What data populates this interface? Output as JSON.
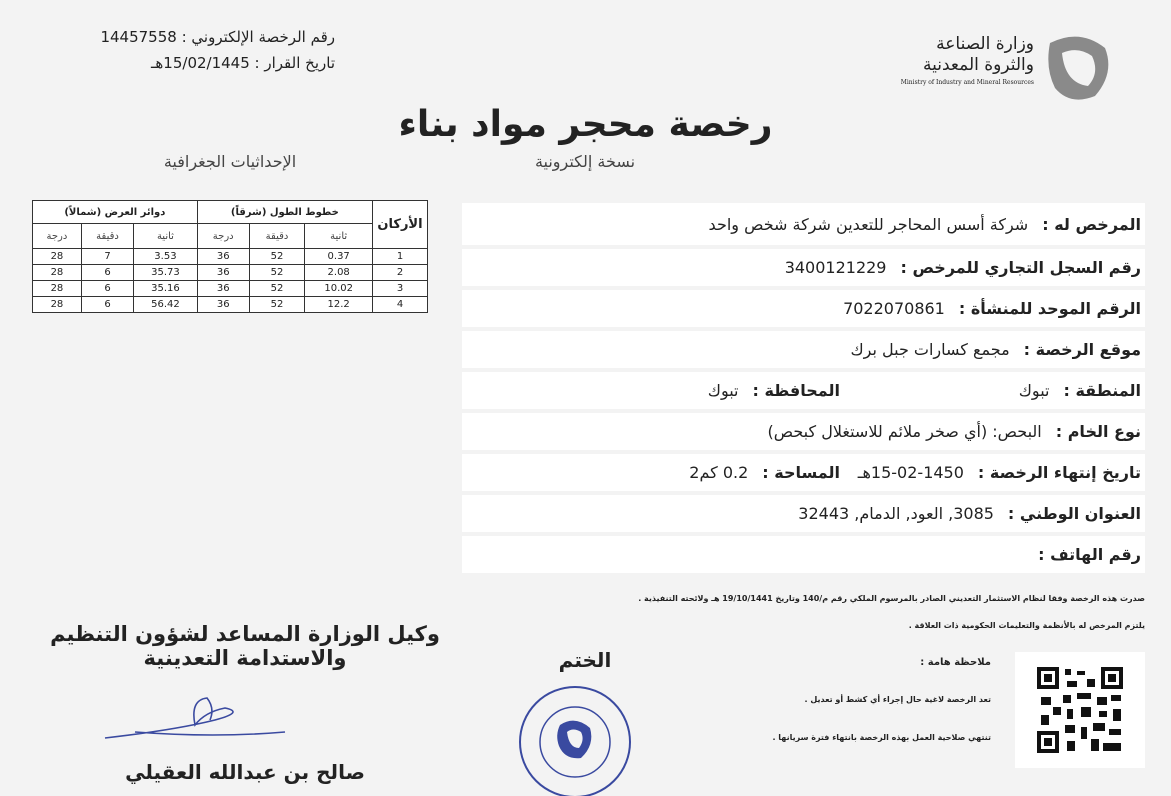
{
  "header": {
    "license_number_label": "رقم الرخصة الإلكتروني :",
    "license_number": "14457558",
    "decision_date_label": "تاريخ القرار :",
    "decision_date": "15/02/1445هـ"
  },
  "ministry": {
    "name_line1": "وزارة الصناعة",
    "name_line2": "والثروة المعدنية",
    "name_en": "Ministry of Industry and Mineral Resources"
  },
  "title": "رخصة محجر مواد بناء",
  "subtitle": "نسخة إلكترونية",
  "coordinates": {
    "title": "الإحداثيات الجغرافية",
    "corner_header": "الأركان",
    "longitude_header": "خطوط الطول (شرقاً)",
    "latitude_header": "دوائر العرض (شمالاً)",
    "sub_headers": [
      "ثانية",
      "دقيقة",
      "درجة"
    ],
    "rows": [
      [
        "1",
        "0.37",
        "52",
        "36",
        "3.53",
        "7",
        "28"
      ],
      [
        "2",
        "2.08",
        "52",
        "36",
        "35.73",
        "6",
        "28"
      ],
      [
        "3",
        "10.02",
        "52",
        "36",
        "35.16",
        "6",
        "28"
      ],
      [
        "4",
        "12.2",
        "52",
        "36",
        "56.42",
        "6",
        "28"
      ]
    ]
  },
  "fields": [
    {
      "label": "المرخص له :",
      "value": "شركة أسس المحاجر للتعدين شركة شخص واحد"
    },
    {
      "label": "رقم السجل التجاري للمرخص :",
      "value": "3400121229"
    },
    {
      "label": "الرقم الموحد للمنشأة :",
      "value": "7022070861"
    },
    {
      "label": "موقع الرخصة :",
      "value": "مجمع كسارات جبل برك"
    },
    {
      "label": "المنطقة :",
      "value": "تبوك",
      "label2": "المحافظة :",
      "value2": "تبوك"
    },
    {
      "label": "نوع الخام :",
      "value": "البحص: (أي صخر ملائم للاستغلال كبحص)"
    },
    {
      "label": "تاريخ إنتهاء الرخصة :",
      "value": "15-02-1450هـ",
      "label2": "المساحة :",
      "value2": "0.2 كم2"
    },
    {
      "label": "العنوان الوطني :",
      "value": "3085, العود, الدمام, 32443"
    },
    {
      "label": "رقم الهاتف :"
    }
  ],
  "notes": [
    "صدرت هذه الرخصة وفقا لنظام الاستثمار التعديني الصادر بالمرسوم الملكي رقم م/140 وتاريخ 19/10/1441 هـ ولائحته التنفيذية .",
    "يلتزم المرخص له بالأنظمة والتعليمات الحكومية ذات العلاقة ."
  ],
  "important": {
    "title": "ملاحظة هامة :",
    "items": [
      "تعد الرخصة لاغية حال إجراء أي كشط أو تعديل .",
      "تنتهي صلاحية العمل بهذه الرخصة بانتهاء فترة سريانها ."
    ]
  },
  "stamp_label": "الختم",
  "signatory": {
    "title_line1": "وكيل الوزارة المساعد لشؤون التنظيم",
    "title_line2": "والاستدامة التعدينية",
    "name": "صالح بن عبدالله العقيلي"
  }
}
